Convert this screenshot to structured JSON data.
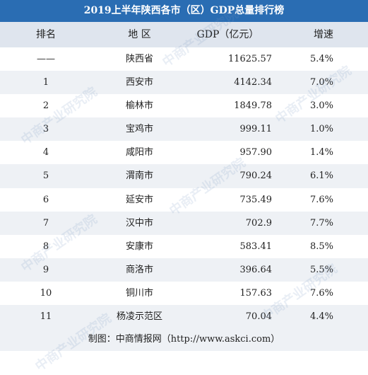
{
  "header": {
    "title": "2019上半年陕西各市（区）GDP总量排行榜"
  },
  "table": {
    "columns": [
      "排名",
      "地 区",
      "GDP（亿元）",
      "增速"
    ],
    "rows": [
      [
        "——",
        "陕西省",
        "11625.57",
        "5.4%"
      ],
      [
        "1",
        "西安市",
        "4142.34",
        "7.0%"
      ],
      [
        "2",
        "榆林市",
        "1849.78",
        "3.0%"
      ],
      [
        "3",
        "宝鸡市",
        "999.11",
        "1.0%"
      ],
      [
        "4",
        "咸阳市",
        "957.90",
        "1.4%"
      ],
      [
        "5",
        "渭南市",
        "790.24",
        "6.1%"
      ],
      [
        "6",
        "延安市",
        "735.49",
        "7.6%"
      ],
      [
        "7",
        "汉中市",
        "702.9",
        "7.7%"
      ],
      [
        "8",
        "安康市",
        "583.41",
        "8.5%"
      ],
      [
        "9",
        "商洛市",
        "396.64",
        "5.5%"
      ],
      [
        "10",
        "铜川市",
        "157.63",
        "7.6%"
      ],
      [
        "11",
        "杨凌示范区",
        "70.04",
        "4.4%"
      ]
    ]
  },
  "footer": {
    "source": "制图：中商情报网（http://www.askci.com）"
  },
  "watermark": "中商产业研究院"
}
